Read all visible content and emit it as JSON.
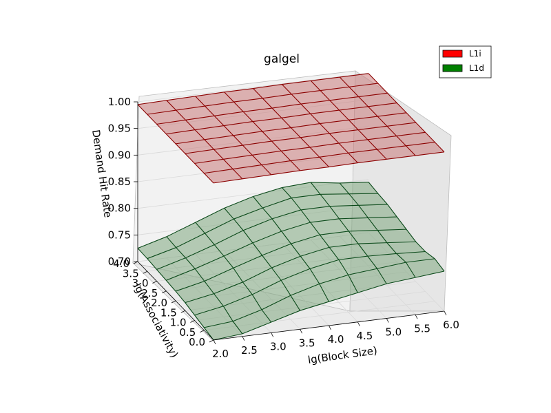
{
  "chart_data": {
    "type": "surface3d",
    "title": "galgel",
    "xlabel": "lg(Block Size)",
    "ylabel": "lg(Associativity)",
    "zlabel": "Demand Hit Rate",
    "x": [
      2.0,
      2.5,
      3.0,
      3.5,
      4.0,
      4.5,
      5.0,
      5.5,
      6.0
    ],
    "y": [
      0.0,
      0.5,
      1.0,
      1.5,
      2.0,
      2.5,
      3.0,
      3.5,
      4.0
    ],
    "xticks": [
      "2.0",
      "2.5",
      "3.0",
      "3.5",
      "4.0",
      "4.5",
      "5.0",
      "5.5",
      "6.0"
    ],
    "yticks": [
      "0.0",
      "0.5",
      "1.0",
      "1.5",
      "2.0",
      "2.5",
      "3.0",
      "3.5",
      "4.0"
    ],
    "zticks": [
      "0.70",
      "0.75",
      "0.80",
      "0.85",
      "0.90",
      "0.95",
      "1.00"
    ],
    "zlim": [
      0.7,
      1.0
    ],
    "legend_position": "top-right",
    "series": [
      {
        "name": "L1i",
        "color": "#ff0000",
        "surface_color": "#c97a7a",
        "line_color": "#8b0000",
        "z": [
          [
            0.995,
            0.996,
            0.997,
            0.998,
            0.998,
            0.999,
            0.999,
            0.999,
            0.999
          ],
          [
            0.995,
            0.996,
            0.997,
            0.998,
            0.998,
            0.999,
            0.999,
            0.999,
            0.999
          ],
          [
            0.995,
            0.996,
            0.997,
            0.998,
            0.998,
            0.999,
            0.999,
            0.999,
            0.999
          ],
          [
            0.995,
            0.996,
            0.997,
            0.998,
            0.998,
            0.999,
            0.999,
            0.999,
            0.999
          ],
          [
            0.995,
            0.996,
            0.997,
            0.998,
            0.998,
            0.999,
            0.999,
            0.999,
            0.999
          ],
          [
            0.995,
            0.996,
            0.997,
            0.998,
            0.998,
            0.999,
            0.999,
            0.999,
            0.999
          ],
          [
            0.995,
            0.996,
            0.997,
            0.998,
            0.998,
            0.999,
            0.999,
            0.999,
            0.999
          ],
          [
            0.995,
            0.996,
            0.997,
            0.998,
            0.998,
            0.999,
            0.999,
            0.999,
            0.999
          ],
          [
            0.995,
            0.996,
            0.997,
            0.998,
            0.998,
            0.999,
            0.999,
            0.999,
            0.999
          ]
        ]
      },
      {
        "name": "L1d",
        "color": "#008000",
        "surface_color": "#7fa87f",
        "line_color": "#0b4a1a",
        "z": [
          [
            0.7,
            0.705,
            0.72,
            0.735,
            0.745,
            0.755,
            0.765,
            0.77,
            0.775
          ],
          [
            0.705,
            0.71,
            0.725,
            0.745,
            0.76,
            0.77,
            0.775,
            0.78,
            0.78
          ],
          [
            0.71,
            0.72,
            0.735,
            0.755,
            0.77,
            0.78,
            0.78,
            0.778,
            0.775
          ],
          [
            0.715,
            0.725,
            0.74,
            0.76,
            0.775,
            0.785,
            0.785,
            0.78,
            0.775
          ],
          [
            0.718,
            0.73,
            0.748,
            0.765,
            0.78,
            0.79,
            0.79,
            0.785,
            0.78
          ],
          [
            0.72,
            0.735,
            0.752,
            0.77,
            0.785,
            0.795,
            0.795,
            0.79,
            0.785
          ],
          [
            0.722,
            0.737,
            0.755,
            0.775,
            0.79,
            0.8,
            0.8,
            0.795,
            0.79
          ],
          [
            0.724,
            0.738,
            0.758,
            0.778,
            0.792,
            0.804,
            0.804,
            0.798,
            0.792
          ],
          [
            0.725,
            0.74,
            0.76,
            0.78,
            0.795,
            0.805,
            0.808,
            0.8,
            0.795
          ]
        ]
      }
    ]
  }
}
